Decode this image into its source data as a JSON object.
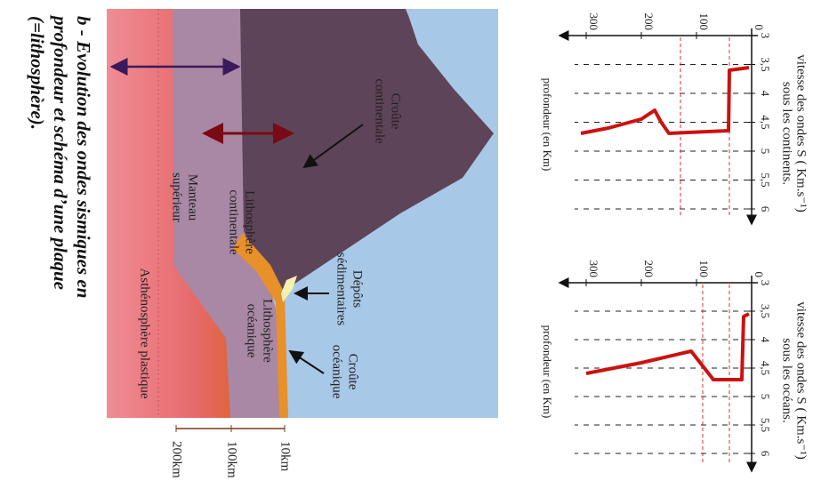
{
  "graphs": [
    {
      "title": [
        "vitesse des ondes S ( Km.s⁻¹)",
        "sous les continents."
      ],
      "velocity_ticks": [
        "3",
        "3,5",
        "4",
        "4,5",
        "5",
        "5,5",
        "6"
      ],
      "depth_ticks": [
        "0",
        "100",
        "200",
        "300"
      ],
      "depth_label": "profondeur (en Km)"
    },
    {
      "title": [
        "vitesse des ondes S ( Km.s⁻¹)",
        "sous les océans."
      ],
      "velocity_ticks": [
        "3",
        "3,5",
        "4",
        "4,5",
        "5",
        "5,5",
        "6"
      ],
      "depth_ticks": [
        "0",
        "100",
        "200",
        "300"
      ],
      "depth_label": "profondeur (en Km)"
    }
  ],
  "schema": {
    "labels": {
      "continental_crust": [
        "Croûte",
        "continentale"
      ],
      "sediments": [
        "Dépôts",
        "sédimentaires"
      ],
      "oceanic_crust": [
        "Croûte",
        "océanique"
      ],
      "oceanic_lithosphere": [
        "Lithosphère",
        "océanique"
      ],
      "continental_lithosphere": [
        "Lithosphère",
        "continentale"
      ],
      "upper_mantle": [
        "Manteau",
        "supérieur"
      ],
      "asthenosphere": "Asthénosphère plastique"
    },
    "depth_scale": [
      "10km",
      "100km",
      "200km"
    ]
  },
  "caption": [
    "b - Evolution des ondes sismiques en",
    "profondeur et schéma d’une plaque",
    "(=lithosphère)."
  ]
}
